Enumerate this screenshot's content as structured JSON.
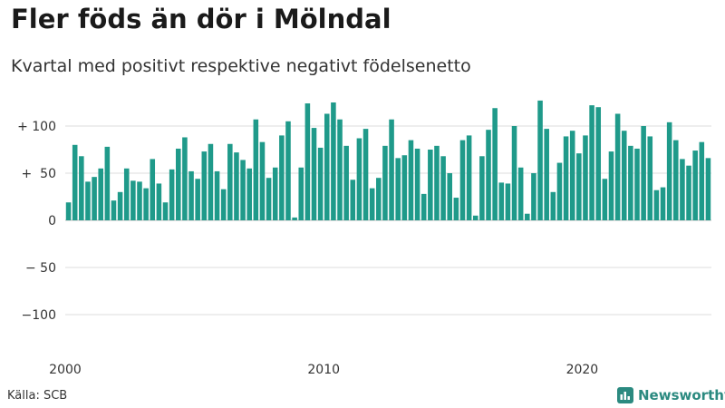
{
  "title": "Fler föds än dör i Mölndal",
  "subtitle": "Kvartal med positivt respektive negativt födelsenetto",
  "source": "Källa: SCB",
  "brand": "Newsworthy",
  "colors": {
    "bar": "#1f9a8a",
    "brand": "#2b8a80",
    "grid": "#dddddd"
  },
  "chart_data": {
    "type": "bar",
    "title": "Fler föds än dör i Mölndal",
    "subtitle": "Kvartal med positivt respektive negativt födelsenetto",
    "xlabel": "",
    "ylabel": "",
    "ylim": [
      -130,
      130
    ],
    "yticks": [
      100,
      50,
      0,
      -50,
      -100
    ],
    "ytick_labels": [
      "+ 100",
      "+  50",
      "0",
      "− 50",
      "−100"
    ],
    "xticks": [
      {
        "index": 0,
        "label": "2000"
      },
      {
        "index": 40,
        "label": "2010"
      },
      {
        "index": 80,
        "label": "2020"
      }
    ],
    "categories": [
      "2000 Q1",
      "2000 Q2",
      "2000 Q3",
      "2000 Q4",
      "2001 Q1",
      "2001 Q2",
      "2001 Q3",
      "2001 Q4",
      "2002 Q1",
      "2002 Q2",
      "2002 Q3",
      "2002 Q4",
      "2003 Q1",
      "2003 Q2",
      "2003 Q3",
      "2003 Q4",
      "2004 Q1",
      "2004 Q2",
      "2004 Q3",
      "2004 Q4",
      "2005 Q1",
      "2005 Q2",
      "2005 Q3",
      "2005 Q4",
      "2006 Q1",
      "2006 Q2",
      "2006 Q3",
      "2006 Q4",
      "2007 Q1",
      "2007 Q2",
      "2007 Q3",
      "2007 Q4",
      "2008 Q1",
      "2008 Q2",
      "2008 Q3",
      "2008 Q4",
      "2009 Q1",
      "2009 Q2",
      "2009 Q3",
      "2009 Q4",
      "2010 Q1",
      "2010 Q2",
      "2010 Q3",
      "2010 Q4",
      "2011 Q1",
      "2011 Q2",
      "2011 Q3",
      "2011 Q4",
      "2012 Q1",
      "2012 Q2",
      "2012 Q3",
      "2012 Q4",
      "2013 Q1",
      "2013 Q2",
      "2013 Q3",
      "2013 Q4",
      "2014 Q1",
      "2014 Q2",
      "2014 Q3",
      "2014 Q4",
      "2015 Q1",
      "2015 Q2",
      "2015 Q3",
      "2015 Q4",
      "2016 Q1",
      "2016 Q2",
      "2016 Q3",
      "2016 Q4",
      "2017 Q1",
      "2017 Q2",
      "2017 Q3",
      "2017 Q4",
      "2018 Q1",
      "2018 Q2",
      "2018 Q3",
      "2018 Q4",
      "2019 Q1",
      "2019 Q2",
      "2019 Q3",
      "2019 Q4",
      "2020 Q1",
      "2020 Q2",
      "2020 Q3",
      "2020 Q4",
      "2021 Q1",
      "2021 Q2",
      "2021 Q3",
      "2021 Q4",
      "2022 Q1",
      "2022 Q2",
      "2022 Q3",
      "2022 Q4",
      "2023 Q1",
      "2023 Q2",
      "2023 Q3",
      "2023 Q4",
      "2024 Q1",
      "2024 Q2",
      "2024 Q3",
      "2024 Q4"
    ],
    "values": [
      19,
      80,
      68,
      41,
      46,
      55,
      78,
      21,
      30,
      55,
      42,
      41,
      34,
      65,
      39,
      19,
      54,
      76,
      88,
      52,
      44,
      73,
      81,
      52,
      33,
      81,
      72,
      64,
      55,
      107,
      83,
      45,
      56,
      90,
      105,
      3,
      56,
      124,
      98,
      77,
      113,
      125,
      107,
      79,
      43,
      87,
      97,
      34,
      45,
      79,
      107,
      66,
      69,
      85,
      76,
      28,
      75,
      79,
      68,
      50,
      24,
      85,
      90,
      5,
      68,
      96,
      119,
      40,
      39,
      100,
      56,
      7,
      50,
      127,
      97,
      30,
      61,
      89,
      95,
      71,
      90,
      122,
      120,
      44,
      73,
      113,
      95,
      79,
      76,
      100,
      89,
      32,
      35,
      104,
      85,
      65,
      58,
      74,
      83,
      66
    ]
  }
}
